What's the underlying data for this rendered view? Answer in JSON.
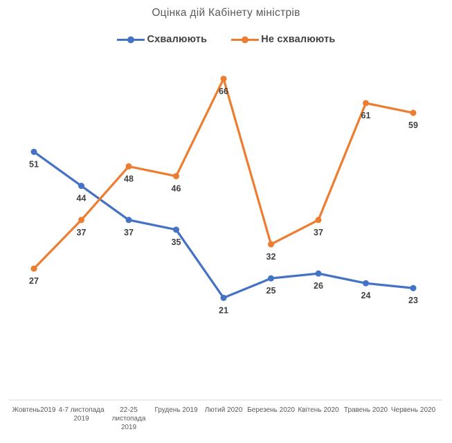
{
  "chart_data": {
    "type": "line",
    "title": "Оцінка дій Кабінету міністрів",
    "categories": [
      "Жовтень2019",
      "4-7 листопада 2019",
      "22-25 листопада 2019",
      "Грудень 2019",
      "Лютий 2020",
      "Березень 2020",
      "Квітень 2020",
      "Травень 2020",
      "Червень 2020"
    ],
    "category_lines": [
      [
        "Жовтень2019"
      ],
      [
        "4-7 листопада",
        "2019"
      ],
      [
        "22-25",
        "листопада",
        "2019"
      ],
      [
        "Грудень 2019"
      ],
      [
        "Лютий 2020"
      ],
      [
        "Березень 2020"
      ],
      [
        "Квітень 2020"
      ],
      [
        "Травень 2020"
      ],
      [
        "Червень 2020"
      ]
    ],
    "series": [
      {
        "name": "Схвалюють",
        "color": "#4472C4",
        "values": [
          51,
          44,
          37,
          35,
          21,
          25,
          26,
          24,
          23
        ]
      },
      {
        "name": "Не схвалюють",
        "color": "#ED7D31",
        "values": [
          27,
          37,
          48,
          46,
          66,
          32,
          37,
          61,
          59
        ]
      }
    ],
    "legend_position": "top",
    "data_labels_visible": true,
    "y_axis_visible": false,
    "x_axis_line_visible": true,
    "gridlines": false,
    "ylim": [
      0,
      70
    ]
  },
  "colors": {
    "background": "#FFFFFF",
    "title_text": "#595959",
    "category_text": "#595959",
    "data_label_text": "#404040",
    "legend_text": "#404040",
    "axis_line": "#D9D9D9",
    "series_blue": "#4472C4",
    "series_orange": "#ED7D31"
  }
}
